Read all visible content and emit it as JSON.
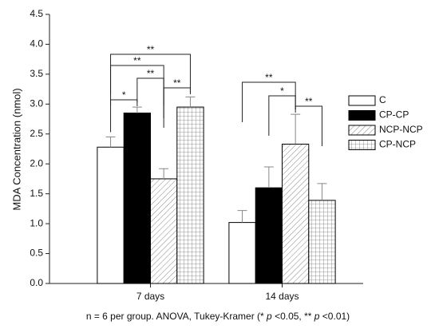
{
  "chart_data": {
    "type": "bar",
    "y_label": "MDA Concentration (nmol)",
    "note": [
      "n = 6 per group. ANOVA, Tukey-Kramer (* ",
      "p",
      " <0.05, ** ",
      "p",
      " <0.01)"
    ],
    "categories": [
      "7 days",
      "14 days"
    ],
    "series": [
      {
        "name": "C",
        "color": "#ffffff",
        "pattern": "solid",
        "values": [
          2.28,
          1.02
        ],
        "errors": [
          0.17,
          0.2
        ]
      },
      {
        "name": "CP-CP",
        "color": "#000000",
        "pattern": "solid",
        "values": [
          2.85,
          1.6
        ],
        "errors": [
          0.1,
          0.35
        ]
      },
      {
        "name": "NCP-NCP",
        "color": "#ffffff",
        "pattern": "hatch",
        "values": [
          1.75,
          2.33
        ],
        "errors": [
          0.17,
          0.5
        ]
      },
      {
        "name": "CP-NCP",
        "color": "#ffffff",
        "pattern": "grid",
        "values": [
          2.95,
          1.39
        ],
        "errors": [
          0.17,
          0.28
        ]
      }
    ],
    "significance": [
      {
        "category": 0,
        "from": 0,
        "to": 1,
        "text": "*"
      },
      {
        "category": 0,
        "from": 1,
        "to": 2,
        "text": "**"
      },
      {
        "category": 0,
        "from": 2,
        "to": 3,
        "text": "**"
      },
      {
        "category": 0,
        "from": 0,
        "to": 2,
        "text": "**"
      },
      {
        "category": 0,
        "from": 0,
        "to": 3,
        "text": "**"
      },
      {
        "category": 1,
        "from": 0,
        "to": 2,
        "text": "**"
      },
      {
        "category": 1,
        "from": 1,
        "to": 2,
        "text": "*"
      },
      {
        "category": 1,
        "from": 2,
        "to": 3,
        "text": "**"
      }
    ],
    "ylim": [
      0,
      4.5
    ],
    "yticks": [
      {
        "value": 0,
        "label": "0.0"
      },
      {
        "value": 0.5,
        "label": "0.5"
      },
      {
        "value": 1,
        "label": "1.0"
      },
      {
        "value": 1.5,
        "label": "1.5"
      },
      {
        "value": 2,
        "label": "2.0"
      },
      {
        "value": 2.5,
        "label": "2.5"
      },
      {
        "value": 3,
        "label": "3.0"
      },
      {
        "value": 3.5,
        "label": "3.5"
      },
      {
        "value": 4,
        "label": "4.0"
      },
      {
        "value": 4.5,
        "label": "4.5"
      }
    ],
    "legend": "right"
  }
}
